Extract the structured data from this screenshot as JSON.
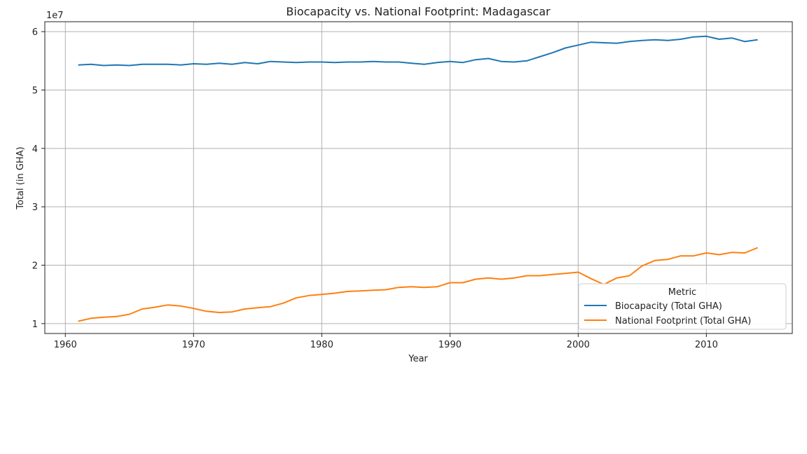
{
  "chart_data": {
    "type": "line",
    "title": "Biocapacity vs. National Footprint: Madagascar",
    "xlabel": "Year",
    "ylabel": "Total (in GHA)",
    "y_offset_label": "1e7",
    "xlim": [
      1958.4,
      2016.7
    ],
    "ylim": [
      0.83,
      6.17
    ],
    "x_ticks": [
      1960,
      1970,
      1980,
      1990,
      2000,
      2010
    ],
    "y_ticks": [
      1,
      2,
      3,
      4,
      5,
      6
    ],
    "grid": true,
    "legend": {
      "title": "Metric",
      "placement": "lower-right"
    },
    "x": [
      1961,
      1962,
      1963,
      1964,
      1965,
      1966,
      1967,
      1968,
      1969,
      1970,
      1971,
      1972,
      1973,
      1974,
      1975,
      1976,
      1977,
      1978,
      1979,
      1980,
      1981,
      1982,
      1983,
      1984,
      1985,
      1986,
      1987,
      1988,
      1989,
      1990,
      1991,
      1992,
      1993,
      1994,
      1995,
      1996,
      1997,
      1998,
      1999,
      2000,
      2001,
      2002,
      2003,
      2004,
      2005,
      2006,
      2007,
      2008,
      2009,
      2010,
      2011,
      2012,
      2013,
      2014
    ],
    "series": [
      {
        "name": "Biocapacity (Total GHA)",
        "color": "#1f77b4",
        "values": [
          5.43,
          5.44,
          5.42,
          5.43,
          5.42,
          5.44,
          5.44,
          5.44,
          5.43,
          5.45,
          5.44,
          5.46,
          5.44,
          5.47,
          5.45,
          5.49,
          5.48,
          5.47,
          5.48,
          5.48,
          5.47,
          5.48,
          5.48,
          5.49,
          5.48,
          5.48,
          5.46,
          5.44,
          5.47,
          5.49,
          5.47,
          5.52,
          5.54,
          5.49,
          5.48,
          5.5,
          5.57,
          5.64,
          5.72,
          5.77,
          5.82,
          5.81,
          5.8,
          5.83,
          5.85,
          5.86,
          5.85,
          5.87,
          5.91,
          5.92,
          5.87,
          5.89,
          5.83,
          5.86
        ]
      },
      {
        "name": "National Footprint (Total GHA)",
        "color": "#ff7f0e",
        "values": [
          1.04,
          1.09,
          1.11,
          1.12,
          1.16,
          1.25,
          1.28,
          1.32,
          1.3,
          1.26,
          1.21,
          1.19,
          1.2,
          1.25,
          1.27,
          1.29,
          1.35,
          1.44,
          1.48,
          1.5,
          1.52,
          1.55,
          1.56,
          1.57,
          1.58,
          1.62,
          1.63,
          1.62,
          1.63,
          1.7,
          1.7,
          1.76,
          1.78,
          1.76,
          1.78,
          1.82,
          1.82,
          1.84,
          1.86,
          1.88,
          1.77,
          1.67,
          1.78,
          1.82,
          1.99,
          2.08,
          2.1,
          2.16,
          2.16,
          2.21,
          2.18,
          2.22,
          2.21,
          2.3
        ]
      }
    ]
  }
}
